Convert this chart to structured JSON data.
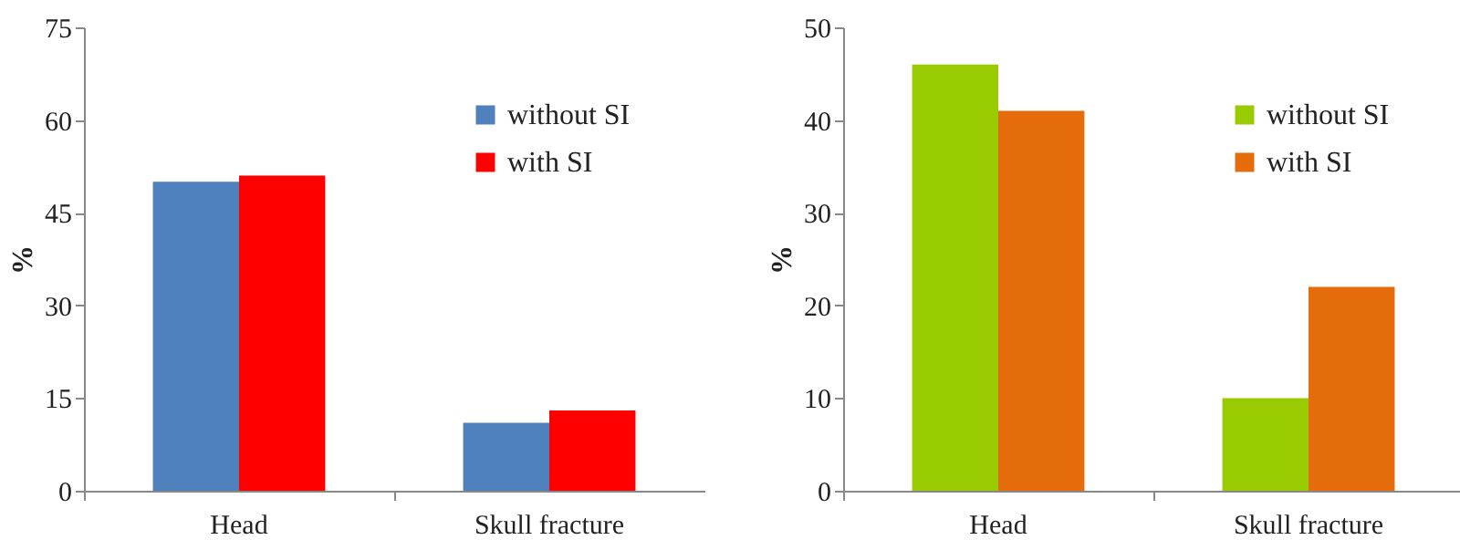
{
  "chart_data": [
    {
      "type": "bar",
      "categories": [
        "Head",
        "Skull fracture"
      ],
      "ylabel": "%",
      "ylim": [
        0,
        75
      ],
      "yticks": [
        0,
        15,
        30,
        45,
        60,
        75
      ],
      "grid": false,
      "legend": "top right",
      "series": [
        {
          "name": "without SI",
          "color": "#4f81bd",
          "values": [
            50,
            11
          ]
        },
        {
          "name": "with SI",
          "color": "#ff0000",
          "values": [
            51,
            13
          ]
        }
      ]
    },
    {
      "type": "bar",
      "categories": [
        "Head",
        "Skull fracture"
      ],
      "ylabel": "%",
      "ylim": [
        0,
        50
      ],
      "yticks": [
        0,
        10,
        20,
        30,
        40,
        50
      ],
      "grid": false,
      "legend": "top right",
      "series": [
        {
          "name": "without SI",
          "color": "#99cc00",
          "values": [
            46,
            10
          ]
        },
        {
          "name": "with SI",
          "color": "#e46c0a",
          "values": [
            41,
            22
          ]
        }
      ]
    }
  ]
}
